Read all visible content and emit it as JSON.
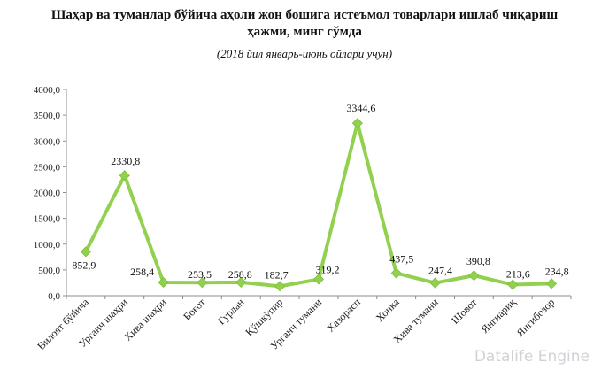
{
  "title_line1": "Шаҳар ва туманлар бўйича аҳоли жон бошига истеъмол товарлари ишлаб чиқариш",
  "title_line2": "ҳажми, минг сўмда",
  "subtitle": "(2018 йил январь-июнь ойлари учун)",
  "watermark": "Datalife Engine",
  "chart_data": {
    "type": "line",
    "title": "Шаҳар ва туманлар бўйича аҳоли жон бошига истеъмол товарлари ишлаб чиқариш ҳажми, минг сўмда",
    "subtitle": "(2018 йил январь-июнь ойлари учун)",
    "categories": [
      "Вилоят бўйича",
      "Урганч шаҳри",
      "Хива шаҳри",
      "Боғот",
      "Гурлан",
      "Қўшкўпир",
      "Урганч тумани",
      "Хазорасп",
      "Хонка",
      "Хива тумани",
      "Шовот",
      "Янгиариқ",
      "Янгибозор"
    ],
    "values": [
      852.9,
      2330.8,
      258.4,
      253.5,
      258.8,
      182.7,
      319.2,
      3344.6,
      437.5,
      247.4,
      390.8,
      213.6,
      234.8
    ],
    "value_labels": [
      "852,9",
      "2330,8",
      "258,4",
      "253,5",
      "258,8",
      "182,7",
      "319,2",
      "3344,6",
      "437,5",
      "247,4",
      "390,8",
      "213,6",
      "234,8"
    ],
    "ylim": [
      0,
      4000
    ],
    "y_ticks": [
      "0,0",
      "500,0",
      "1000,0",
      "1500,0",
      "2000,0",
      "2500,0",
      "3000,0",
      "3500,0",
      "4000,0"
    ],
    "y_tick_values": [
      0,
      500,
      1000,
      1500,
      2000,
      2500,
      3000,
      3500,
      4000
    ],
    "xlabel": "",
    "ylabel": "",
    "grid": false,
    "legend": "none",
    "line_color": "#92d050",
    "marker": "diamond"
  }
}
